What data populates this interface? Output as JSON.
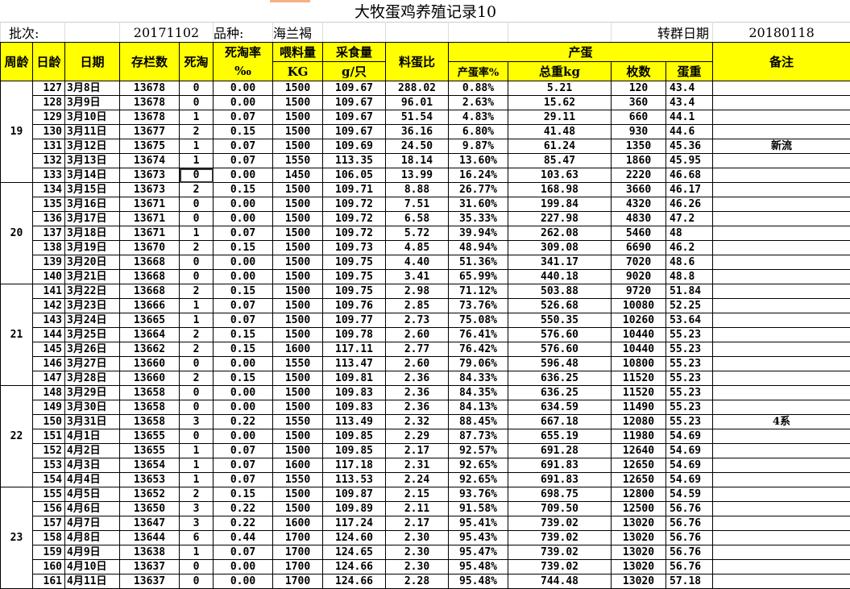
{
  "title": "大牧蛋鸡养殖记录10",
  "info": {
    "batch_label": "批次:",
    "batch_value": "20171102",
    "breed_label": "品种:",
    "breed_value": "海兰褐",
    "transfer_label": "转群日期",
    "transfer_value": "20180118"
  },
  "headers": {
    "week": "周龄",
    "day": "日龄",
    "date": "日期",
    "stock": "存栏数",
    "deaths": "死淘",
    "rate": "死淘率",
    "rate_unit": "‰",
    "feed": "喂料量",
    "feed_unit": "KG",
    "intake": "采食量",
    "intake_unit": "g/只",
    "ratio": "料蛋比",
    "eggs": "产蛋",
    "lay_rate": "产蛋率%",
    "total_weight": "总重kg",
    "count": "枚数",
    "egg_weight": "蛋重",
    "remarks": "备注"
  },
  "colors": {
    "header_bg": "#ffff00"
  },
  "weeks": [
    {
      "week": "19",
      "rows": [
        [
          "127",
          "3月8日",
          "13678",
          "0",
          "0.00",
          "1500",
          "109.67",
          "288.02",
          "0.88%",
          "5.21",
          "120",
          "43.4",
          ""
        ],
        [
          "128",
          "3月9日",
          "13678",
          "0",
          "0.00",
          "1500",
          "109.67",
          "96.01",
          "2.63%",
          "15.62",
          "360",
          "43.4",
          ""
        ],
        [
          "129",
          "3月10日",
          "13678",
          "1",
          "0.07",
          "1500",
          "109.67",
          "51.54",
          "4.83%",
          "29.11",
          "660",
          "44.1",
          ""
        ],
        [
          "130",
          "3月11日",
          "13677",
          "2",
          "0.15",
          "1500",
          "109.67",
          "36.16",
          "6.80%",
          "41.48",
          "930",
          "44.6",
          ""
        ],
        [
          "131",
          "3月12日",
          "13675",
          "1",
          "0.07",
          "1500",
          "109.69",
          "24.50",
          "9.87%",
          "61.24",
          "1350",
          "45.36",
          "新流"
        ],
        [
          "132",
          "3月13日",
          "13674",
          "1",
          "0.07",
          "1550",
          "113.35",
          "18.14",
          "13.60%",
          "85.47",
          "1860",
          "45.95",
          ""
        ],
        [
          "133",
          "3月14日",
          "13673",
          "0",
          "0.00",
          "1450",
          "106.05",
          "13.99",
          "16.24%",
          "103.63",
          "2220",
          "46.68",
          ""
        ]
      ]
    },
    {
      "week": "20",
      "rows": [
        [
          "134",
          "3月15日",
          "13673",
          "2",
          "0.15",
          "1500",
          "109.71",
          "8.88",
          "26.77%",
          "168.98",
          "3660",
          "46.17",
          ""
        ],
        [
          "135",
          "3月16日",
          "13671",
          "0",
          "0.00",
          "1500",
          "109.72",
          "7.51",
          "31.60%",
          "199.84",
          "4320",
          "46.26",
          ""
        ],
        [
          "136",
          "3月17日",
          "13671",
          "0",
          "0.00",
          "1500",
          "109.72",
          "6.58",
          "35.33%",
          "227.98",
          "4830",
          "47.2",
          ""
        ],
        [
          "137",
          "3月18日",
          "13671",
          "1",
          "0.07",
          "1500",
          "109.72",
          "5.72",
          "39.94%",
          "262.08",
          "5460",
          "48",
          ""
        ],
        [
          "138",
          "3月19日",
          "13670",
          "2",
          "0.15",
          "1500",
          "109.73",
          "4.85",
          "48.94%",
          "309.08",
          "6690",
          "46.2",
          ""
        ],
        [
          "139",
          "3月20日",
          "13668",
          "0",
          "0.00",
          "1500",
          "109.75",
          "4.40",
          "51.36%",
          "341.17",
          "7020",
          "48.6",
          ""
        ],
        [
          "140",
          "3月21日",
          "13668",
          "0",
          "0.00",
          "1500",
          "109.75",
          "3.41",
          "65.99%",
          "440.18",
          "9020",
          "48.8",
          ""
        ]
      ]
    },
    {
      "week": "21",
      "rows": [
        [
          "141",
          "3月22日",
          "13668",
          "2",
          "0.15",
          "1500",
          "109.75",
          "2.98",
          "71.12%",
          "503.88",
          "9720",
          "51.84",
          ""
        ],
        [
          "142",
          "3月23日",
          "13666",
          "1",
          "0.07",
          "1500",
          "109.76",
          "2.85",
          "73.76%",
          "526.68",
          "10080",
          "52.25",
          ""
        ],
        [
          "143",
          "3月24日",
          "13665",
          "1",
          "0.07",
          "1500",
          "109.77",
          "2.73",
          "75.08%",
          "550.35",
          "10260",
          "53.64",
          ""
        ],
        [
          "144",
          "3月25日",
          "13664",
          "2",
          "0.15",
          "1500",
          "109.78",
          "2.60",
          "76.41%",
          "576.60",
          "10440",
          "55.23",
          ""
        ],
        [
          "145",
          "3月26日",
          "13662",
          "2",
          "0.15",
          "1600",
          "117.11",
          "2.77",
          "76.42%",
          "576.60",
          "10440",
          "55.23",
          ""
        ],
        [
          "146",
          "3月27日",
          "13660",
          "0",
          "0.00",
          "1550",
          "113.47",
          "2.60",
          "79.06%",
          "596.48",
          "10800",
          "55.23",
          ""
        ],
        [
          "147",
          "3月28日",
          "13660",
          "2",
          "0.15",
          "1500",
          "109.81",
          "2.36",
          "84.33%",
          "636.25",
          "11520",
          "55.23",
          ""
        ]
      ]
    },
    {
      "week": "22",
      "rows": [
        [
          "148",
          "3月29日",
          "13658",
          "0",
          "0.00",
          "1500",
          "109.83",
          "2.36",
          "84.35%",
          "636.25",
          "11520",
          "55.23",
          ""
        ],
        [
          "149",
          "3月30日",
          "13658",
          "0",
          "0.00",
          "1500",
          "109.83",
          "2.36",
          "84.13%",
          "634.59",
          "11490",
          "55.23",
          ""
        ],
        [
          "150",
          "3月31日",
          "13658",
          "3",
          "0.22",
          "1550",
          "113.49",
          "2.32",
          "88.45%",
          "667.18",
          "12080",
          "55.23",
          "4系"
        ],
        [
          "151",
          "4月1日",
          "13655",
          "0",
          "0.00",
          "1500",
          "109.85",
          "2.29",
          "87.73%",
          "655.19",
          "11980",
          "54.69",
          ""
        ],
        [
          "152",
          "4月2日",
          "13655",
          "1",
          "0.07",
          "1500",
          "109.85",
          "2.17",
          "92.57%",
          "691.28",
          "12640",
          "54.69",
          ""
        ],
        [
          "153",
          "4月3日",
          "13654",
          "1",
          "0.07",
          "1600",
          "117.18",
          "2.31",
          "92.65%",
          "691.83",
          "12650",
          "54.69",
          ""
        ],
        [
          "154",
          "4月4日",
          "13653",
          "1",
          "0.07",
          "1550",
          "113.53",
          "2.24",
          "92.65%",
          "691.83",
          "12650",
          "54.69",
          ""
        ]
      ]
    },
    {
      "week": "23",
      "rows": [
        [
          "155",
          "4月5日",
          "13652",
          "2",
          "0.15",
          "1500",
          "109.87",
          "2.15",
          "93.76%",
          "698.75",
          "12800",
          "54.59",
          ""
        ],
        [
          "156",
          "4月6日",
          "13650",
          "3",
          "0.22",
          "1500",
          "109.89",
          "2.11",
          "91.58%",
          "709.50",
          "12500",
          "56.76",
          ""
        ],
        [
          "157",
          "4月7日",
          "13647",
          "3",
          "0.22",
          "1600",
          "117.24",
          "2.17",
          "95.41%",
          "739.02",
          "13020",
          "56.76",
          ""
        ],
        [
          "158",
          "4月8日",
          "13644",
          "6",
          "0.44",
          "1700",
          "124.60",
          "2.30",
          "95.43%",
          "739.02",
          "13020",
          "56.76",
          ""
        ],
        [
          "159",
          "4月9日",
          "13638",
          "1",
          "0.07",
          "1700",
          "124.65",
          "2.30",
          "95.47%",
          "739.02",
          "13020",
          "56.76",
          ""
        ],
        [
          "160",
          "4月10日",
          "13637",
          "0",
          "0.00",
          "1700",
          "124.66",
          "2.30",
          "95.48%",
          "739.02",
          "13020",
          "56.76",
          ""
        ],
        [
          "161",
          "4月11日",
          "13637",
          "0",
          "0.00",
          "1700",
          "124.66",
          "2.28",
          "95.48%",
          "744.48",
          "13020",
          "57.18",
          ""
        ]
      ]
    }
  ]
}
